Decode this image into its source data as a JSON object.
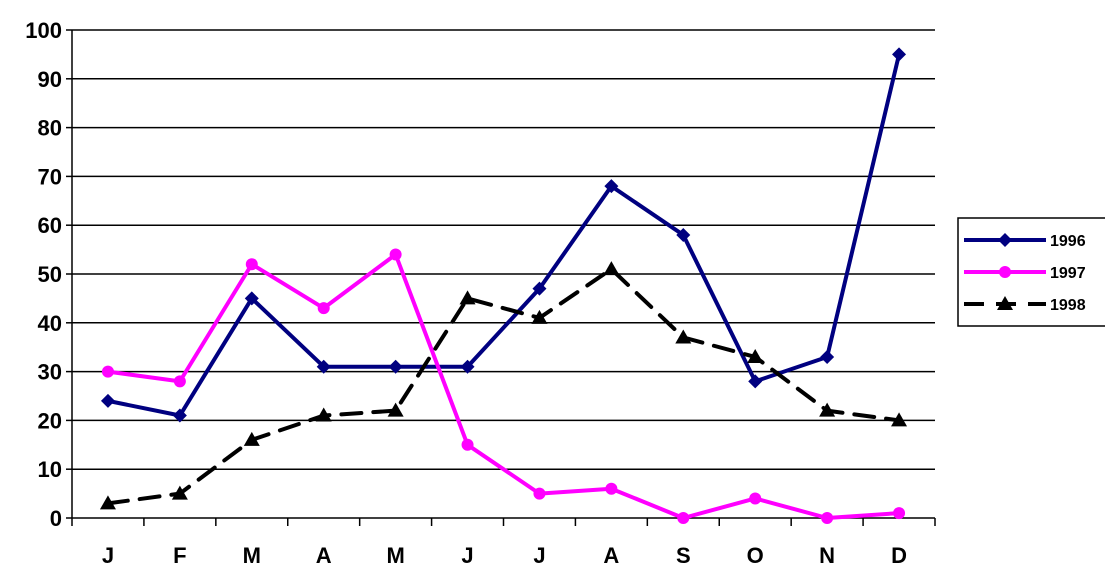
{
  "chart_data": {
    "type": "line",
    "title": "",
    "xlabel": "",
    "ylabel": "",
    "categories": [
      "J",
      "F",
      "M",
      "A",
      "M",
      "J",
      "J",
      "A",
      "S",
      "O",
      "N",
      "D"
    ],
    "ylim": [
      0,
      100
    ],
    "yticks": [
      0,
      10,
      20,
      30,
      40,
      50,
      60,
      70,
      80,
      90,
      100
    ],
    "grid": "horizontal",
    "legend_position": "right",
    "series": [
      {
        "name": "1996",
        "values": [
          24,
          21,
          45,
          31,
          31,
          31,
          47,
          68,
          58,
          28,
          33,
          95
        ],
        "color": "#000080",
        "marker": "diamond",
        "line_style": "solid"
      },
      {
        "name": "1997",
        "values": [
          30,
          28,
          52,
          43,
          54,
          15,
          5,
          6,
          0,
          4,
          0,
          1
        ],
        "color": "#FF00FF",
        "marker": "circle",
        "line_style": "solid"
      },
      {
        "name": "1998",
        "values": [
          3,
          5,
          16,
          21,
          22,
          45,
          41,
          51,
          37,
          33,
          22,
          20
        ],
        "color": "#000000",
        "marker": "triangle",
        "line_style": "dashed"
      }
    ]
  }
}
